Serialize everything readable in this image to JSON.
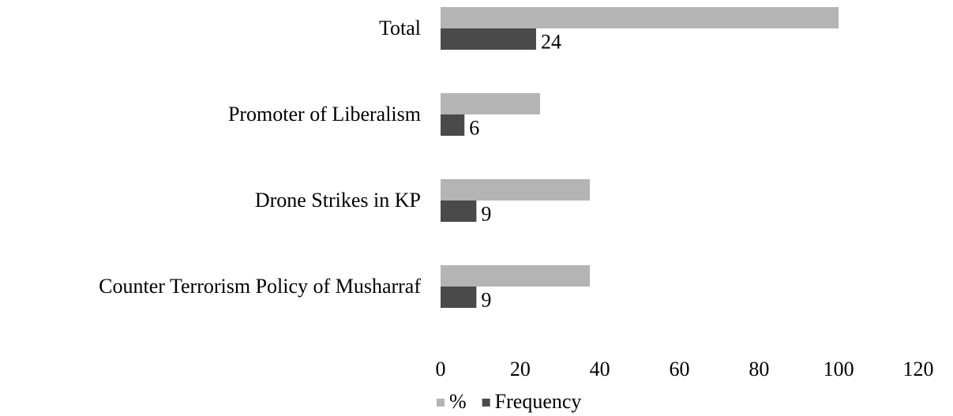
{
  "chart_data": {
    "type": "hbar",
    "categories": [
      "Total",
      "Promoter of Liberalism",
      "Drone Strikes in KP",
      "Counter Terrorism Policy of Musharraf"
    ],
    "series": [
      {
        "name": "%",
        "color": "#b4b4b4",
        "values": [
          100,
          25,
          37.5,
          37.5
        ]
      },
      {
        "name": "Frequency",
        "color": "#4a4a4a",
        "values": [
          24,
          6,
          9,
          9
        ],
        "labels": true
      }
    ],
    "xlim": [
      0,
      120
    ],
    "xticks": [
      0,
      20,
      40,
      60,
      80,
      100,
      120
    ],
    "grid": false,
    "legend": "bottom"
  }
}
